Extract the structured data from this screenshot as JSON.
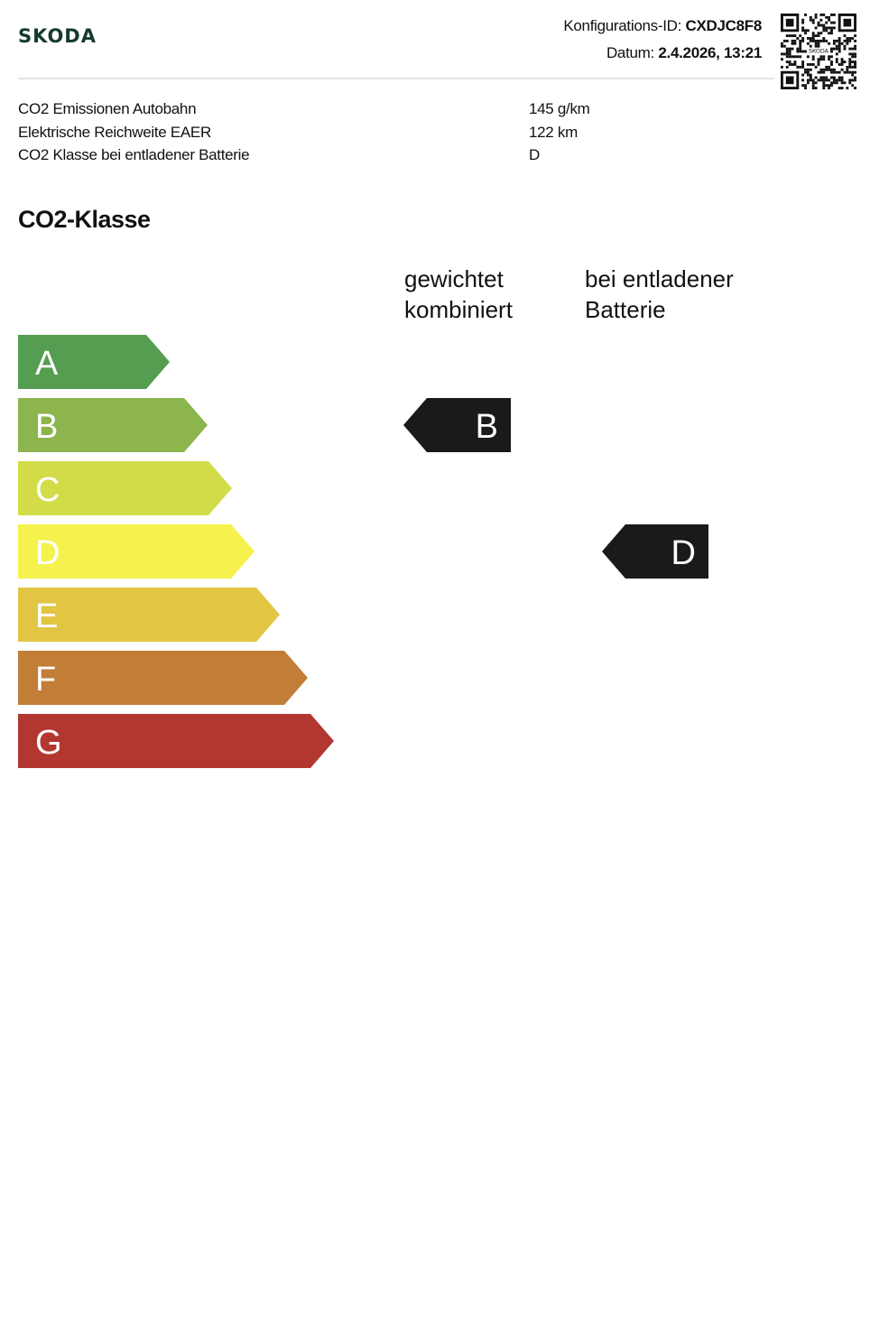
{
  "header": {
    "brand": "SKODA",
    "config_label": "Konfigurations-ID:",
    "config_id": "CXDJC8F8",
    "date_label": "Datum:",
    "date_value": "2.4.2026, 13:21",
    "qr_icon": "qr-code-icon"
  },
  "specs": [
    {
      "label": "CO2 Emissionen Autobahn",
      "value": "145 g/km"
    },
    {
      "label": "Elektrische Reichweite EAER",
      "value": "122 km"
    },
    {
      "label": "CO2 Klasse bei entladener Batterie",
      "value": "D"
    }
  ],
  "co2": {
    "title": "CO2-Klasse",
    "col1": [
      "gewichtet",
      "kombiniert"
    ],
    "col2": [
      "bei entladener",
      "Batterie"
    ],
    "classes": [
      {
        "label": "A",
        "color": "#559d50"
      },
      {
        "label": "B",
        "color": "#8db54e"
      },
      {
        "label": "C",
        "color": "#d2dc48"
      },
      {
        "label": "D",
        "color": "#f6f24d"
      },
      {
        "label": "E",
        "color": "#e2c542"
      },
      {
        "label": "F",
        "color": "#c27d37"
      },
      {
        "label": "G",
        "color": "#b23730"
      }
    ],
    "weighted_class": "B",
    "discharged_class": "D"
  }
}
